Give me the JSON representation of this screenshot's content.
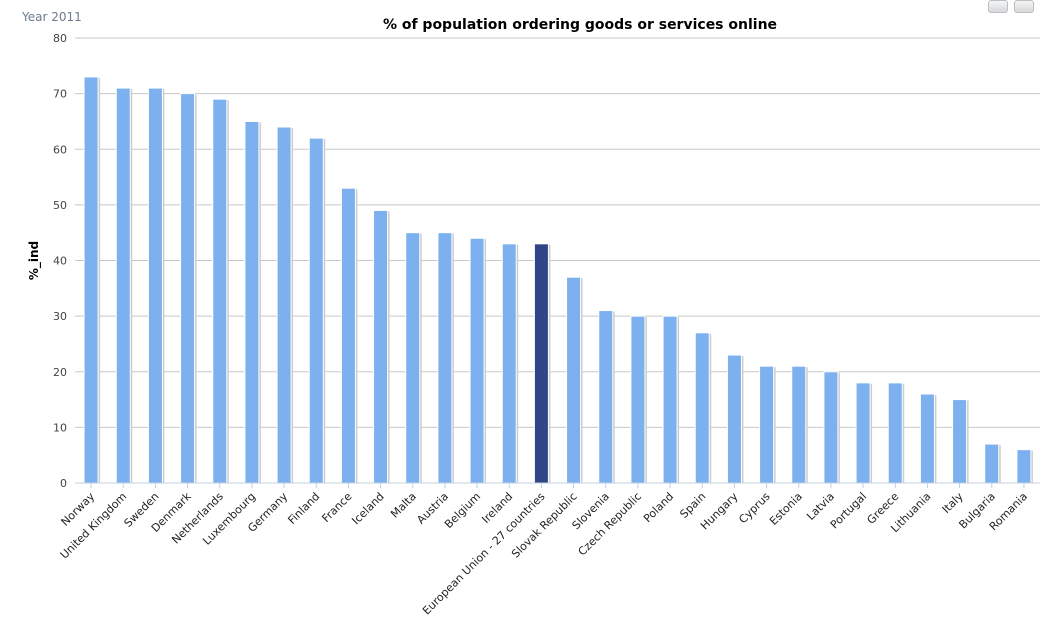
{
  "subtitle": "Year 2011",
  "toolbar": {
    "print_icon": "printer-icon",
    "export_icon": "download-icon"
  },
  "chart_data": {
    "type": "bar",
    "title": "% of population ordering goods or services online",
    "xlabel": "",
    "ylabel": "%_ind",
    "ylim": [
      0,
      80
    ],
    "yticks": [
      0,
      10,
      20,
      30,
      40,
      50,
      60,
      70,
      80
    ],
    "grid": true,
    "legend": "none",
    "categories": [
      "Norway",
      "United Kingdom",
      "Sweden",
      "Denmark",
      "Netherlands",
      "Luxembourg",
      "Germany",
      "Finland",
      "France",
      "Iceland",
      "Malta",
      "Austria",
      "Belgium",
      "Ireland",
      "European Union - 27 countries",
      "Slovak Republic",
      "Slovenia",
      "Czech Republic",
      "Poland",
      "Spain",
      "Hungary",
      "Cyprus",
      "Estonia",
      "Latvia",
      "Portugal",
      "Greece",
      "Lithuania",
      "Italy",
      "Bulgaria",
      "Romania"
    ],
    "values": [
      73,
      71,
      71,
      70,
      69,
      65,
      64,
      62,
      53,
      49,
      45,
      45,
      44,
      43,
      43,
      37,
      31,
      30,
      30,
      27,
      23,
      21,
      21,
      20,
      18,
      18,
      16,
      15,
      7,
      6
    ],
    "highlight": "European Union - 27 countries",
    "colors": {
      "bar": "#7cb0ef",
      "highlight": "#2f4585",
      "grid": "#c8c8c8"
    }
  }
}
